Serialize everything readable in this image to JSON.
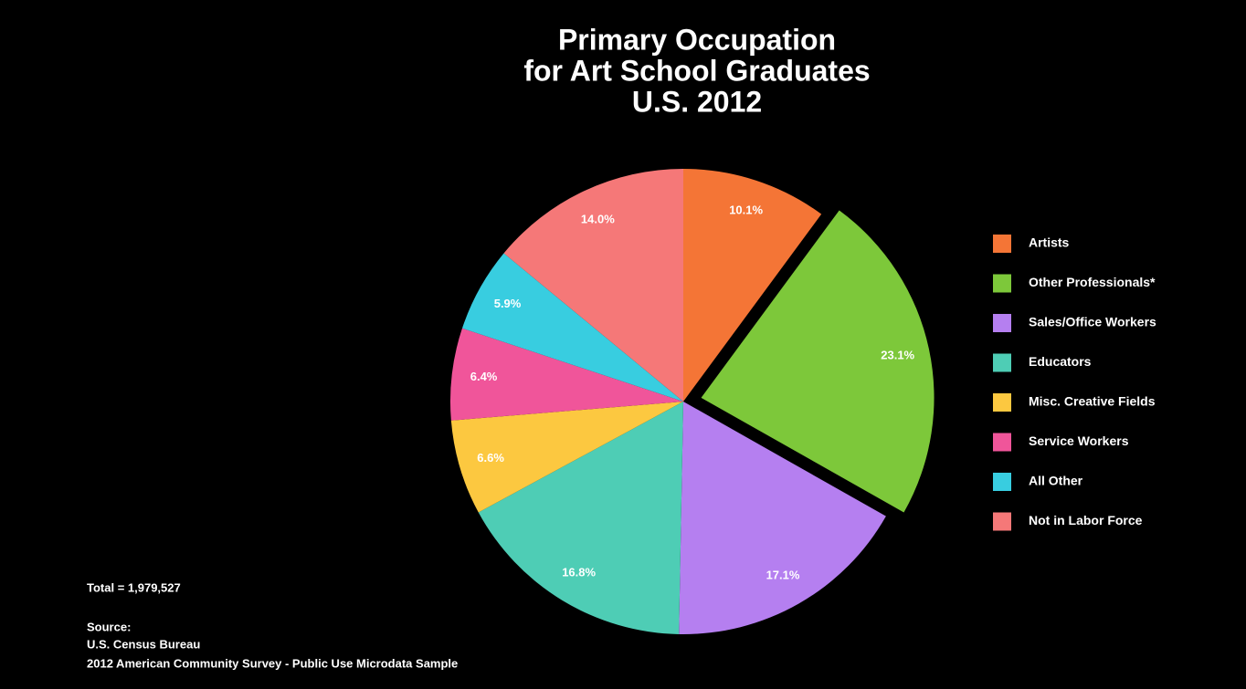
{
  "chart_data": {
    "type": "pie",
    "title": [
      "Primary Occupation",
      "for Art School Graduates",
      "U.S. 2012"
    ],
    "categories": [
      "Artists",
      "Other Professionals*",
      "Sales/Office Workers",
      "Educators",
      "Misc. Creative Fields",
      "Service Workers",
      "All Other",
      "Not in Labor Force"
    ],
    "values": [
      10.1,
      23.1,
      17.1,
      16.8,
      6.6,
      6.4,
      5.9,
      14.0
    ],
    "value_labels": [
      "10.1%",
      "23.1%",
      "17.1%",
      "16.8%",
      "6.6%",
      "6.4%",
      "5.9%",
      "14.0%"
    ],
    "colors": [
      "#f47536",
      "#7dc83a",
      "#b57ff0",
      "#4ecdb5",
      "#fcc840",
      "#f0559a",
      "#38cde0",
      "#f57878"
    ],
    "explode": [
      0,
      1,
      0,
      0,
      0,
      0,
      0,
      0
    ],
    "legend": "right",
    "notes": [
      "Total = 1,979,527",
      "Source:",
      "U.S. Census Bureau",
      "2012 American Community Survey - Public Use Microdata Sample"
    ]
  }
}
